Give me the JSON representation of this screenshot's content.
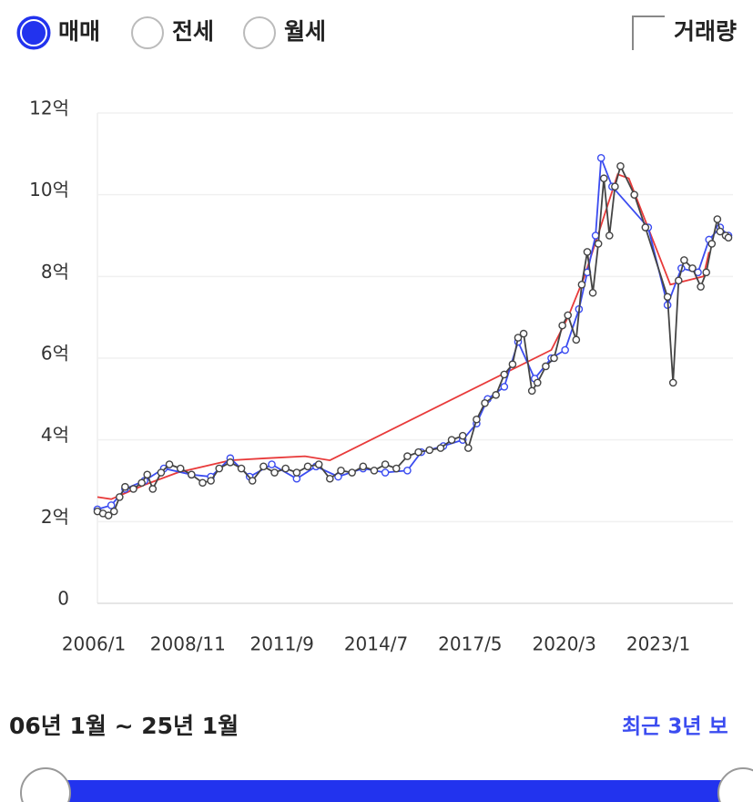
{
  "tabs": [
    {
      "label": "매매",
      "selected": true
    },
    {
      "label": "전세",
      "selected": false
    },
    {
      "label": "월세",
      "selected": false
    }
  ],
  "volume_toggle": {
    "label": "거래량",
    "checked": false
  },
  "chart_data": {
    "type": "line",
    "xlim": [
      "2006/1",
      "2025/1"
    ],
    "xticks": [
      "2006/1",
      "2008/11",
      "2011/9",
      "2014/7",
      "2017/5",
      "2020/3",
      "2023/1"
    ],
    "ylim": [
      0,
      12
    ],
    "yticks": [
      0,
      {
        "value": 2,
        "label": "2억"
      },
      {
        "value": 4,
        "label": "4억"
      },
      {
        "value": 6,
        "label": "6억"
      },
      {
        "value": 8,
        "label": "8억"
      },
      {
        "value": 10,
        "label": "10억"
      },
      {
        "value": 12,
        "label": "12억"
      }
    ],
    "grid": true,
    "series": [
      {
        "color": "#e83a3a",
        "markers": false,
        "x": [
          "2006/1",
          "2006/6",
          "2007/6",
          "2008/6",
          "2010/1",
          "2011/2",
          "2012/4",
          "2013/1",
          "2019/9",
          "2020/3",
          "2020/9",
          "2021/9",
          "2022/1",
          "2023/4",
          "2024/4",
          "2024/6"
        ],
        "values": [
          2.6,
          2.55,
          2.9,
          3.2,
          3.5,
          3.55,
          3.6,
          3.5,
          6.2,
          7.0,
          8.0,
          10.5,
          10.4,
          7.8,
          8.0,
          8.6
        ]
      },
      {
        "color": "#3b4cf0",
        "markers": true,
        "x": [
          "2006/1",
          "2006/6",
          "2006/11",
          "2007/6",
          "2008/1",
          "2008/11",
          "2009/6",
          "2010/1",
          "2010/8",
          "2011/4",
          "2012/1",
          "2012/8",
          "2013/4",
          "2014/1",
          "2014/9",
          "2015/5",
          "2015/10",
          "2016/6",
          "2017/1",
          "2017/6",
          "2017/10",
          "2018/4",
          "2018/9",
          "2019/3",
          "2019/9",
          "2020/2",
          "2020/7",
          "2020/10",
          "2021/1",
          "2021/3",
          "2021/7",
          "2022/8",
          "2023/3",
          "2023/8",
          "2024/2",
          "2024/6",
          "2024/10",
          "2025/1"
        ],
        "values": [
          2.3,
          2.4,
          2.8,
          3.0,
          3.3,
          3.15,
          3.1,
          3.55,
          3.1,
          3.4,
          3.05,
          3.35,
          3.1,
          3.3,
          3.2,
          3.25,
          3.7,
          3.85,
          4.0,
          4.4,
          5.0,
          5.3,
          6.4,
          5.5,
          6.0,
          6.2,
          7.2,
          8.1,
          9.0,
          10.9,
          10.2,
          9.2,
          7.3,
          8.2,
          8.1,
          8.9,
          9.2,
          9.0
        ]
      },
      {
        "color": "#444444",
        "markers": true,
        "x": [
          "2006/1",
          "2006/3",
          "2006/5",
          "2006/7",
          "2006/9",
          "2006/11",
          "2007/2",
          "2007/5",
          "2007/7",
          "2007/9",
          "2007/12",
          "2008/3",
          "2008/7",
          "2008/11",
          "2009/3",
          "2009/6",
          "2009/9",
          "2010/1",
          "2010/5",
          "2010/9",
          "2011/1",
          "2011/5",
          "2011/9",
          "2012/1",
          "2012/5",
          "2012/9",
          "2013/1",
          "2013/5",
          "2013/9",
          "2014/1",
          "2014/5",
          "2014/9",
          "2015/1",
          "2015/5",
          "2015/9",
          "2016/1",
          "2016/5",
          "2016/9",
          "2017/1",
          "2017/3",
          "2017/6",
          "2017/9",
          "2018/1",
          "2018/4",
          "2018/7",
          "2018/9",
          "2018/11",
          "2019/2",
          "2019/4",
          "2019/7",
          "2019/10",
          "2020/1",
          "2020/3",
          "2020/6",
          "2020/8",
          "2020/10",
          "2020/12",
          "2021/2",
          "2021/4",
          "2021/6",
          "2021/8",
          "2021/10",
          "2022/3",
          "2022/7",
          "2023/3",
          "2023/5",
          "2023/7",
          "2023/9",
          "2023/12",
          "2024/3",
          "2024/5",
          "2024/7",
          "2024/9",
          "2024/10",
          "2024/12",
          "2025/1"
        ],
        "values": [
          2.25,
          2.2,
          2.15,
          2.25,
          2.6,
          2.85,
          2.8,
          2.95,
          3.15,
          2.8,
          3.2,
          3.4,
          3.3,
          3.15,
          2.95,
          3.0,
          3.3,
          3.45,
          3.3,
          3.0,
          3.35,
          3.2,
          3.3,
          3.2,
          3.35,
          3.4,
          3.05,
          3.25,
          3.2,
          3.35,
          3.25,
          3.4,
          3.3,
          3.6,
          3.7,
          3.75,
          3.8,
          4.0,
          4.1,
          3.8,
          4.5,
          4.9,
          5.1,
          5.6,
          5.85,
          6.5,
          6.6,
          5.2,
          5.4,
          5.8,
          6.0,
          6.8,
          7.05,
          6.45,
          7.8,
          8.6,
          7.6,
          8.8,
          10.4,
          9.0,
          10.2,
          10.7,
          10.0,
          9.2,
          7.5,
          5.4,
          7.9,
          8.4,
          8.2,
          7.75,
          8.1,
          8.8,
          9.4,
          9.1,
          9.0,
          8.95
        ]
      }
    ]
  },
  "range_label": "06년 1월 ~ 25년 1월",
  "recent_button": "최근 3년 보"
}
